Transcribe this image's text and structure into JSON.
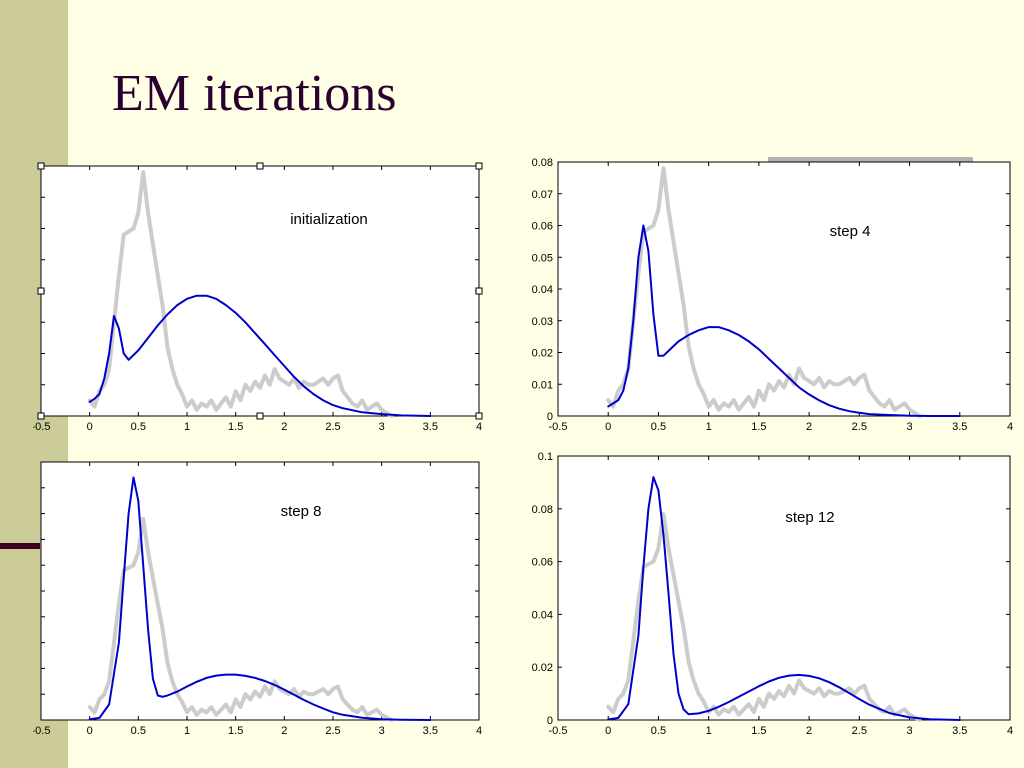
{
  "slide": {
    "title": "EM iterations",
    "colors": {
      "background": "#FFFFE5",
      "side_bar": "#CCCC99",
      "title": "#2A0030",
      "accent_rule": "#400024"
    }
  },
  "chart_data": [
    {
      "type": "line",
      "annotation": "initialization",
      "xlim": [
        -0.5,
        4
      ],
      "ylim": [
        0,
        0.08
      ],
      "xticks": [
        "-0.5",
        "0",
        "0.5",
        "1",
        "1.5",
        "2",
        "2.5",
        "3",
        "3.5",
        "4"
      ],
      "yticks": [],
      "series": [
        {
          "role": "data-histogram",
          "color": "#CCCCCC",
          "x": [
            0,
            0.05,
            0.1,
            0.15,
            0.2,
            0.25,
            0.3,
            0.35,
            0.4,
            0.45,
            0.5,
            0.55,
            0.6,
            0.65,
            0.7,
            0.75,
            0.8,
            0.85,
            0.9,
            0.95,
            1.0,
            1.05,
            1.1,
            1.15,
            1.2,
            1.25,
            1.3,
            1.35,
            1.4,
            1.45,
            1.5,
            1.55,
            1.6,
            1.65,
            1.7,
            1.75,
            1.8,
            1.85,
            1.9,
            1.95,
            2.0,
            2.05,
            2.1,
            2.15,
            2.2,
            2.25,
            2.3,
            2.35,
            2.4,
            2.45,
            2.5,
            2.55,
            2.6,
            2.65,
            2.7,
            2.75,
            2.8,
            2.85,
            2.9,
            2.95,
            3.0,
            3.05,
            3.1
          ],
          "y": [
            0.005,
            0.003,
            0.008,
            0.01,
            0.015,
            0.03,
            0.045,
            0.058,
            0.059,
            0.06,
            0.065,
            0.078,
            0.065,
            0.055,
            0.045,
            0.035,
            0.022,
            0.015,
            0.01,
            0.007,
            0.003,
            0.005,
            0.002,
            0.004,
            0.003,
            0.005,
            0.002,
            0.004,
            0.006,
            0.003,
            0.008,
            0.005,
            0.01,
            0.008,
            0.011,
            0.009,
            0.013,
            0.01,
            0.015,
            0.012,
            0.011,
            0.01,
            0.012,
            0.009,
            0.011,
            0.01,
            0.01,
            0.011,
            0.012,
            0.01,
            0.012,
            0.013,
            0.008,
            0.006,
            0.004,
            0.003,
            0.005,
            0.002,
            0.003,
            0.004,
            0.002,
            0.001,
            0.0
          ]
        },
        {
          "role": "mixture-model",
          "color": "#0000CC",
          "x": [
            0,
            0.05,
            0.1,
            0.15,
            0.2,
            0.25,
            0.3,
            0.35,
            0.4,
            0.5,
            0.6,
            0.7,
            0.8,
            0.9,
            1.0,
            1.1,
            1.2,
            1.3,
            1.4,
            1.5,
            1.6,
            1.7,
            1.8,
            1.9,
            2.0,
            2.1,
            2.2,
            2.3,
            2.4,
            2.5,
            2.6,
            2.8,
            3.0,
            3.2,
            3.5
          ],
          "y": [
            0.0045,
            0.0055,
            0.007,
            0.012,
            0.02,
            0.032,
            0.028,
            0.02,
            0.018,
            0.021,
            0.025,
            0.029,
            0.0325,
            0.0355,
            0.0375,
            0.0385,
            0.0385,
            0.0375,
            0.0355,
            0.033,
            0.03,
            0.0265,
            0.023,
            0.0195,
            0.016,
            0.0125,
            0.0095,
            0.007,
            0.005,
            0.0035,
            0.0025,
            0.0012,
            0.0006,
            0.0002,
            0.0
          ]
        }
      ]
    },
    {
      "type": "line",
      "annotation": "step 4",
      "xlim": [
        -0.5,
        4
      ],
      "ylim": [
        0,
        0.08
      ],
      "xticks": [
        "-0.5",
        "0",
        "0.5",
        "1",
        "1.5",
        "2",
        "2.5",
        "3",
        "3.5",
        "4"
      ],
      "yticks": [
        "0",
        "0.01",
        "0.02",
        "0.03",
        "0.04",
        "0.05",
        "0.06",
        "0.07",
        "0.08"
      ],
      "series": [
        {
          "role": "data-histogram",
          "color": "#CCCCCC",
          "x": [
            0,
            0.05,
            0.1,
            0.15,
            0.2,
            0.25,
            0.3,
            0.35,
            0.4,
            0.45,
            0.5,
            0.55,
            0.6,
            0.65,
            0.7,
            0.75,
            0.8,
            0.85,
            0.9,
            0.95,
            1.0,
            1.05,
            1.1,
            1.15,
            1.2,
            1.25,
            1.3,
            1.35,
            1.4,
            1.45,
            1.5,
            1.55,
            1.6,
            1.65,
            1.7,
            1.75,
            1.8,
            1.85,
            1.9,
            1.95,
            2.0,
            2.05,
            2.1,
            2.15,
            2.2,
            2.25,
            2.3,
            2.35,
            2.4,
            2.45,
            2.5,
            2.55,
            2.6,
            2.65,
            2.7,
            2.75,
            2.8,
            2.85,
            2.9,
            2.95,
            3.0,
            3.05,
            3.1
          ],
          "y": [
            0.005,
            0.003,
            0.008,
            0.01,
            0.015,
            0.03,
            0.045,
            0.058,
            0.059,
            0.06,
            0.065,
            0.078,
            0.065,
            0.055,
            0.045,
            0.035,
            0.022,
            0.015,
            0.01,
            0.007,
            0.003,
            0.005,
            0.002,
            0.004,
            0.003,
            0.005,
            0.002,
            0.004,
            0.006,
            0.003,
            0.008,
            0.005,
            0.01,
            0.008,
            0.011,
            0.009,
            0.013,
            0.01,
            0.015,
            0.012,
            0.011,
            0.01,
            0.012,
            0.009,
            0.011,
            0.01,
            0.01,
            0.011,
            0.012,
            0.01,
            0.012,
            0.013,
            0.008,
            0.006,
            0.004,
            0.003,
            0.005,
            0.002,
            0.003,
            0.004,
            0.002,
            0.001,
            0.0
          ]
        },
        {
          "role": "mixture-model",
          "color": "#0000CC",
          "x": [
            0,
            0.1,
            0.15,
            0.2,
            0.25,
            0.3,
            0.35,
            0.4,
            0.45,
            0.5,
            0.55,
            0.6,
            0.7,
            0.8,
            0.9,
            1.0,
            1.1,
            1.2,
            1.3,
            1.4,
            1.5,
            1.6,
            1.7,
            1.8,
            1.9,
            2.0,
            2.1,
            2.2,
            2.3,
            2.4,
            2.5,
            2.6,
            2.8,
            3.0,
            3.2,
            3.5
          ],
          "y": [
            0.003,
            0.005,
            0.008,
            0.015,
            0.03,
            0.05,
            0.06,
            0.052,
            0.032,
            0.019,
            0.019,
            0.0205,
            0.0235,
            0.0255,
            0.027,
            0.028,
            0.028,
            0.027,
            0.0255,
            0.0235,
            0.021,
            0.018,
            0.015,
            0.012,
            0.009,
            0.0068,
            0.0049,
            0.0034,
            0.0023,
            0.0015,
            0.001,
            0.0006,
            0.0003,
            0.0001,
            0.0,
            0.0
          ]
        }
      ]
    },
    {
      "type": "line",
      "annotation": "step 8",
      "xlim": [
        -0.5,
        4
      ],
      "ylim": [
        0,
        0.1
      ],
      "xticks": [
        "-0.5",
        "0",
        "0.5",
        "1",
        "1.5",
        "2",
        "2.5",
        "3",
        "3.5",
        "4"
      ],
      "yticks": [],
      "series": [
        {
          "role": "data-histogram",
          "color": "#CCCCCC",
          "x": [
            0,
            0.05,
            0.1,
            0.15,
            0.2,
            0.25,
            0.3,
            0.35,
            0.4,
            0.45,
            0.5,
            0.55,
            0.6,
            0.65,
            0.7,
            0.75,
            0.8,
            0.85,
            0.9,
            0.95,
            1.0,
            1.05,
            1.1,
            1.15,
            1.2,
            1.25,
            1.3,
            1.35,
            1.4,
            1.45,
            1.5,
            1.55,
            1.6,
            1.65,
            1.7,
            1.75,
            1.8,
            1.85,
            1.9,
            1.95,
            2.0,
            2.05,
            2.1,
            2.15,
            2.2,
            2.25,
            2.3,
            2.35,
            2.4,
            2.45,
            2.5,
            2.55,
            2.6,
            2.65,
            2.7,
            2.75,
            2.8,
            2.85,
            2.9,
            2.95,
            3.0,
            3.05,
            3.1
          ],
          "y": [
            0.005,
            0.003,
            0.008,
            0.01,
            0.015,
            0.03,
            0.045,
            0.058,
            0.059,
            0.06,
            0.065,
            0.078,
            0.065,
            0.055,
            0.045,
            0.035,
            0.022,
            0.015,
            0.01,
            0.007,
            0.003,
            0.005,
            0.002,
            0.004,
            0.003,
            0.005,
            0.002,
            0.004,
            0.006,
            0.003,
            0.008,
            0.005,
            0.01,
            0.008,
            0.011,
            0.009,
            0.013,
            0.01,
            0.015,
            0.012,
            0.011,
            0.01,
            0.012,
            0.009,
            0.011,
            0.01,
            0.01,
            0.011,
            0.012,
            0.01,
            0.012,
            0.013,
            0.008,
            0.006,
            0.004,
            0.003,
            0.005,
            0.002,
            0.003,
            0.004,
            0.002,
            0.001,
            0.0
          ]
        },
        {
          "role": "mixture-model",
          "color": "#0000CC",
          "x": [
            0,
            0.1,
            0.2,
            0.3,
            0.35,
            0.4,
            0.45,
            0.5,
            0.55,
            0.6,
            0.65,
            0.7,
            0.75,
            0.8,
            0.9,
            1.0,
            1.1,
            1.2,
            1.3,
            1.4,
            1.5,
            1.6,
            1.7,
            1.8,
            1.9,
            2.0,
            2.1,
            2.2,
            2.3,
            2.4,
            2.5,
            2.6,
            2.8,
            3.0,
            3.2,
            3.5
          ],
          "y": [
            0.0003,
            0.0008,
            0.006,
            0.03,
            0.055,
            0.08,
            0.094,
            0.085,
            0.06,
            0.035,
            0.016,
            0.0095,
            0.009,
            0.0095,
            0.011,
            0.013,
            0.0148,
            0.0163,
            0.0172,
            0.0176,
            0.0176,
            0.0171,
            0.0163,
            0.0151,
            0.0136,
            0.0118,
            0.0098,
            0.0078,
            0.006,
            0.0044,
            0.003,
            0.002,
            0.0009,
            0.0003,
            0.0001,
            0.0
          ]
        }
      ]
    },
    {
      "type": "line",
      "annotation": "step 12",
      "xlim": [
        -0.5,
        4
      ],
      "ylim": [
        0,
        0.1
      ],
      "xticks": [
        "-0.5",
        "0",
        "0.5",
        "1",
        "1.5",
        "2",
        "2.5",
        "3",
        "3.5",
        "4"
      ],
      "yticks": [
        "0",
        "0.02",
        "0.04",
        "0.06",
        "0.08",
        "0.1"
      ],
      "series": [
        {
          "role": "data-histogram",
          "color": "#CCCCCC",
          "x": [
            0,
            0.05,
            0.1,
            0.15,
            0.2,
            0.25,
            0.3,
            0.35,
            0.4,
            0.45,
            0.5,
            0.55,
            0.6,
            0.65,
            0.7,
            0.75,
            0.8,
            0.85,
            0.9,
            0.95,
            1.0,
            1.05,
            1.1,
            1.15,
            1.2,
            1.25,
            1.3,
            1.35,
            1.4,
            1.45,
            1.5,
            1.55,
            1.6,
            1.65,
            1.7,
            1.75,
            1.8,
            1.85,
            1.9,
            1.95,
            2.0,
            2.05,
            2.1,
            2.15,
            2.2,
            2.25,
            2.3,
            2.35,
            2.4,
            2.45,
            2.5,
            2.55,
            2.6,
            2.65,
            2.7,
            2.75,
            2.8,
            2.85,
            2.9,
            2.95,
            3.0,
            3.05,
            3.1
          ],
          "y": [
            0.005,
            0.003,
            0.008,
            0.01,
            0.015,
            0.03,
            0.045,
            0.058,
            0.059,
            0.06,
            0.065,
            0.078,
            0.065,
            0.055,
            0.045,
            0.035,
            0.022,
            0.015,
            0.01,
            0.007,
            0.003,
            0.005,
            0.002,
            0.004,
            0.003,
            0.005,
            0.002,
            0.004,
            0.006,
            0.003,
            0.008,
            0.005,
            0.01,
            0.008,
            0.011,
            0.009,
            0.013,
            0.01,
            0.015,
            0.012,
            0.011,
            0.01,
            0.012,
            0.009,
            0.011,
            0.01,
            0.01,
            0.011,
            0.012,
            0.01,
            0.012,
            0.013,
            0.008,
            0.006,
            0.004,
            0.003,
            0.005,
            0.002,
            0.003,
            0.004,
            0.002,
            0.001,
            0.0
          ]
        },
        {
          "role": "mixture-model",
          "color": "#0000CC",
          "x": [
            0,
            0.1,
            0.2,
            0.3,
            0.35,
            0.4,
            0.45,
            0.5,
            0.55,
            0.6,
            0.65,
            0.7,
            0.75,
            0.8,
            0.9,
            1.0,
            1.1,
            1.2,
            1.3,
            1.4,
            1.5,
            1.6,
            1.7,
            1.8,
            1.9,
            2.0,
            2.1,
            2.2,
            2.3,
            2.4,
            2.5,
            2.6,
            2.8,
            3.0,
            3.2,
            3.5
          ],
          "y": [
            0.0002,
            0.0008,
            0.006,
            0.032,
            0.058,
            0.08,
            0.092,
            0.087,
            0.07,
            0.048,
            0.025,
            0.01,
            0.004,
            0.0022,
            0.0025,
            0.0035,
            0.005,
            0.0068,
            0.0088,
            0.0108,
            0.0128,
            0.0146,
            0.016,
            0.0168,
            0.0171,
            0.0167,
            0.0158,
            0.0143,
            0.0124,
            0.0102,
            0.0079,
            0.0058,
            0.0026,
            0.001,
            0.0003,
            0.0
          ]
        }
      ]
    }
  ]
}
